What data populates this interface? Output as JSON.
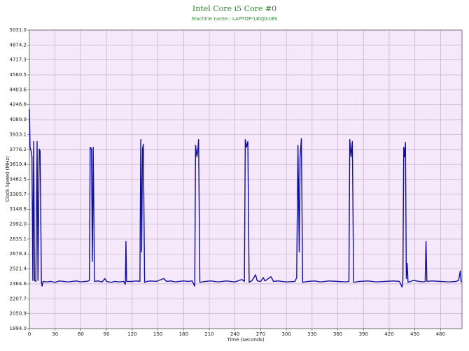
{
  "chart_data": {
    "type": "line",
    "title": "Intel Core i5 Core #0",
    "subtitle": "Machine name : LAPTOP-18VJG1BS",
    "x_label": "Time (seconds)",
    "y_label": "Clock Speed (MHz)",
    "x": [
      0,
      0.8,
      2,
      3,
      4,
      5,
      6,
      7.5,
      9,
      10,
      11.5,
      12.5,
      14,
      14.8,
      16,
      20,
      25,
      30,
      35,
      40,
      45,
      50,
      55,
      60,
      65,
      68,
      70,
      71,
      72.5,
      73.5,
      74.5,
      76,
      80,
      85,
      88,
      90,
      95,
      100,
      105,
      110,
      112,
      112.7,
      113.5,
      120,
      125,
      129,
      130,
      131,
      132,
      133,
      134.5,
      137,
      142,
      148,
      157,
      160,
      165,
      170,
      175,
      180,
      185,
      190,
      193,
      194,
      195.5,
      196.5,
      197.5,
      199,
      205,
      212,
      220,
      230,
      240,
      248,
      251,
      252,
      253.5,
      255,
      256.5,
      260,
      264,
      266,
      270,
      273,
      275,
      282,
      285,
      290,
      300,
      310,
      312,
      313.5,
      315,
      316,
      317.5,
      319,
      325,
      333,
      340,
      350,
      360,
      370,
      373,
      374,
      375.5,
      377,
      378.5,
      385,
      395,
      405,
      415,
      425,
      432,
      435,
      436,
      437,
      438,
      439,
      440,
      441,
      442,
      448,
      455,
      460,
      462,
      463,
      464,
      470,
      480,
      490,
      498,
      501,
      503,
      504
    ],
    "series": [
      {
        "color": "#10109a",
        "values": [
          4200,
          3800,
          3760,
          3700,
          2400,
          3860,
          2400,
          2390,
          3860,
          2400,
          3780,
          3760,
          2390,
          2340,
          2390,
          2385,
          2390,
          2380,
          2395,
          2390,
          2385,
          2390,
          2395,
          2385,
          2390,
          2392,
          2400,
          3800,
          3780,
          2600,
          3800,
          2390,
          2395,
          2385,
          2420,
          2390,
          2380,
          2390,
          2385,
          2390,
          2360,
          2810,
          2390,
          2390,
          2395,
          2390,
          3880,
          2700,
          3780,
          3830,
          2380,
          2390,
          2395,
          2390,
          2420,
          2390,
          2395,
          2385,
          2390,
          2395,
          2390,
          2395,
          2340,
          3820,
          3700,
          3760,
          3880,
          2380,
          2390,
          2395,
          2385,
          2395,
          2385,
          2410,
          2390,
          3880,
          3800,
          3860,
          2380,
          2400,
          2460,
          2395,
          2390,
          2430,
          2395,
          2440,
          2390,
          2395,
          2385,
          2390,
          2430,
          3820,
          2700,
          3700,
          3890,
          2380,
          2390,
          2395,
          2385,
          2395,
          2390,
          2385,
          2390,
          3880,
          3700,
          3860,
          2380,
          2390,
          2395,
          2385,
          2390,
          2395,
          2390,
          2330,
          2400,
          3800,
          3700,
          3850,
          2420,
          2580,
          2380,
          2400,
          2390,
          2385,
          2390,
          2810,
          2390,
          2395,
          2390,
          2385,
          2390,
          2400,
          2500,
          2380
        ]
      }
    ],
    "xlim": [
      0,
      505
    ],
    "ylim": [
      1894,
      5031
    ],
    "xticks": [
      0,
      30,
      60,
      90,
      120,
      150,
      180,
      210,
      240,
      270,
      300,
      330,
      360,
      390,
      420,
      450,
      480
    ],
    "yticks": [
      {
        "value": 1894,
        "label": "1894.0"
      },
      2050.9,
      2207.7,
      2364.6,
      2521.4,
      2678.3,
      2835.1,
      {
        "value": 2992,
        "label": "2992.0"
      },
      3148.8,
      3305.7,
      3462.5,
      3619.4,
      3776.2,
      3933.1,
      4089.9,
      4246.8,
      4403.6,
      4560.5,
      4717.3,
      4874.2,
      {
        "value": 5031,
        "label": "5031.0"
      }
    ],
    "grid": true,
    "background": "#f6e8fb",
    "grid_color": "#b8a8c0"
  }
}
